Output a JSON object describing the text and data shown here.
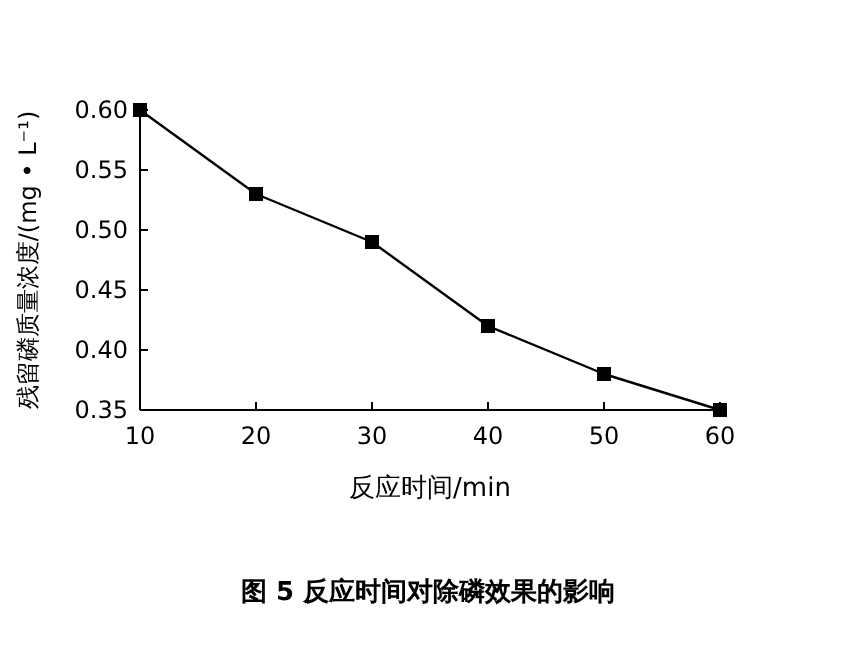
{
  "chart_data": {
    "type": "line",
    "title": "图 5   反应时间对除磷效果的影响",
    "xlabel": "反应时间/min",
    "ylabel": "残留磷质量浓度/(mg • L⁻¹)",
    "x": [
      10,
      20,
      30,
      40,
      50,
      60
    ],
    "series": [
      {
        "color": "#000000",
        "values": [
          0.6,
          0.53,
          0.49,
          0.42,
          0.38,
          0.35
        ]
      }
    ],
    "xlim": [
      10,
      60
    ],
    "xticks": [
      10,
      20,
      30,
      40,
      50,
      60
    ],
    "ylim": [
      0.35,
      0.6
    ],
    "yticks": [
      {
        "value": 0.35,
        "label": "0.35"
      },
      {
        "value": 0.4,
        "label": "0.40"
      },
      {
        "value": 0.45,
        "label": "0.45"
      },
      {
        "value": 0.5,
        "label": "0.50"
      },
      {
        "value": 0.55,
        "label": "0.55"
      },
      {
        "value": 0.6,
        "label": "0.60"
      }
    ],
    "marker": "square",
    "line_style": "solid",
    "grid": false
  }
}
